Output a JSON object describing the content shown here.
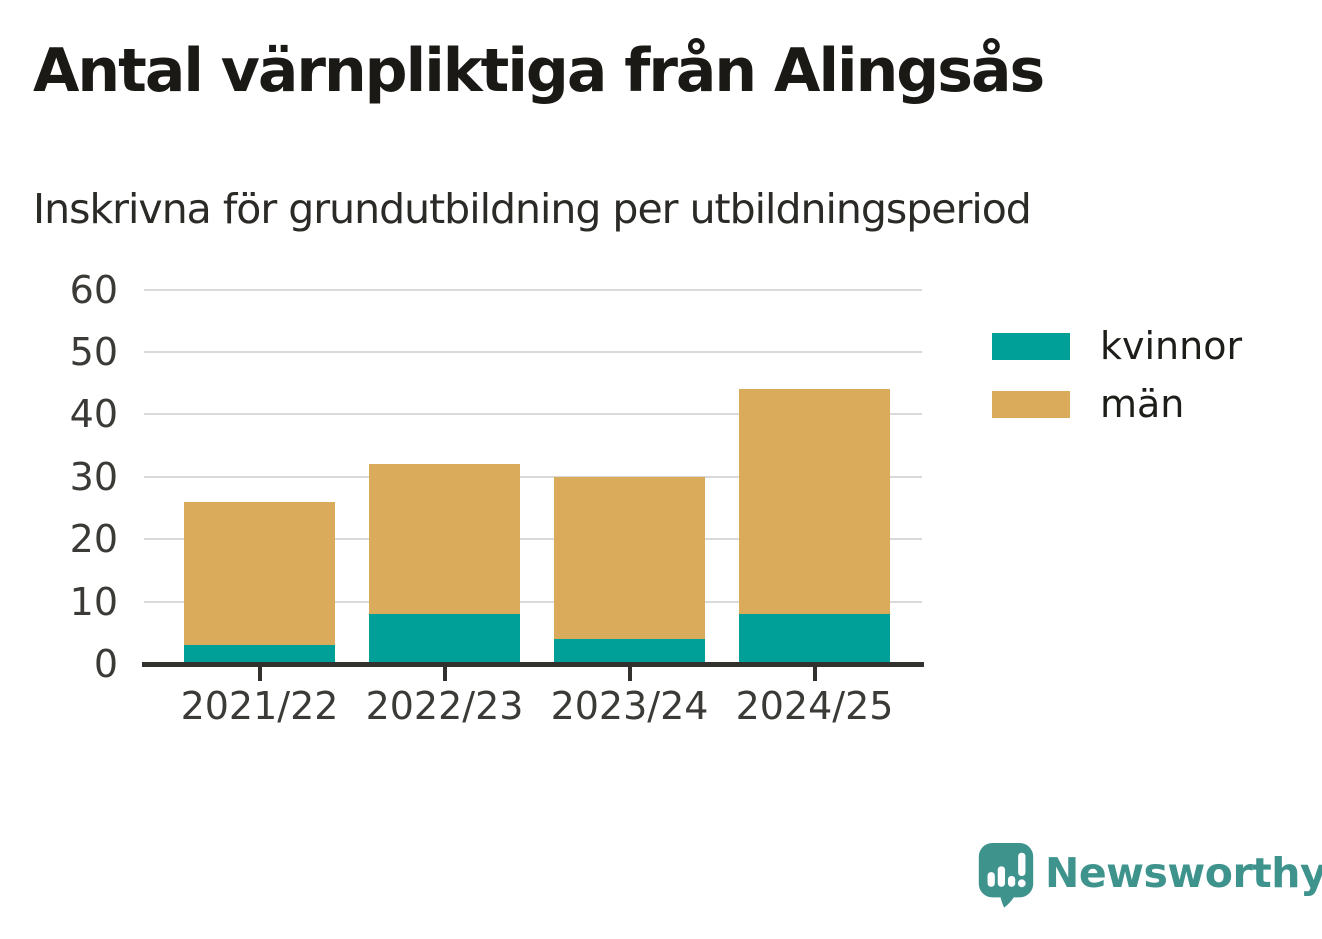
{
  "header": {
    "title": "Antal värnpliktiga från Alingsås",
    "subtitle": "Inskrivna för grundutbildning per utbildningsperiod"
  },
  "chart_data": {
    "type": "bar",
    "stacked": true,
    "title": "Antal värnpliktiga från Alingsås",
    "subtitle": "Inskrivna för grundutbildning per utbildningsperiod",
    "categories": [
      "2021/22",
      "2022/23",
      "2023/24",
      "2024/25"
    ],
    "series": [
      {
        "name": "kvinnor",
        "color": "#00A099",
        "values": [
          3,
          8,
          4,
          8
        ]
      },
      {
        "name": "män",
        "color": "#DBAB5C",
        "values": [
          23,
          24,
          26,
          36
        ]
      }
    ],
    "stack_totals": [
      26,
      32,
      30,
      44
    ],
    "xlabel": "",
    "ylabel": "",
    "ylim": [
      0,
      60
    ],
    "yticks": [
      0,
      10,
      20,
      30,
      40,
      50,
      60
    ],
    "grid": true,
    "legend_position": "right"
  },
  "legend": {
    "items": [
      {
        "label": "kvinnor",
        "color": "#00A099"
      },
      {
        "label": "män",
        "color": "#DBAB5C"
      }
    ]
  },
  "branding": {
    "name": "Newsworthy",
    "color": "#3E938D"
  },
  "colors": {
    "series_kvinnor": "#00A099",
    "series_man": "#DBAB5C",
    "gridline": "#D9D9D9",
    "axis": "#32312D",
    "tick_text": "#3B3A37",
    "title_text": "#1A1915",
    "brand_teal": "#3E938D"
  }
}
